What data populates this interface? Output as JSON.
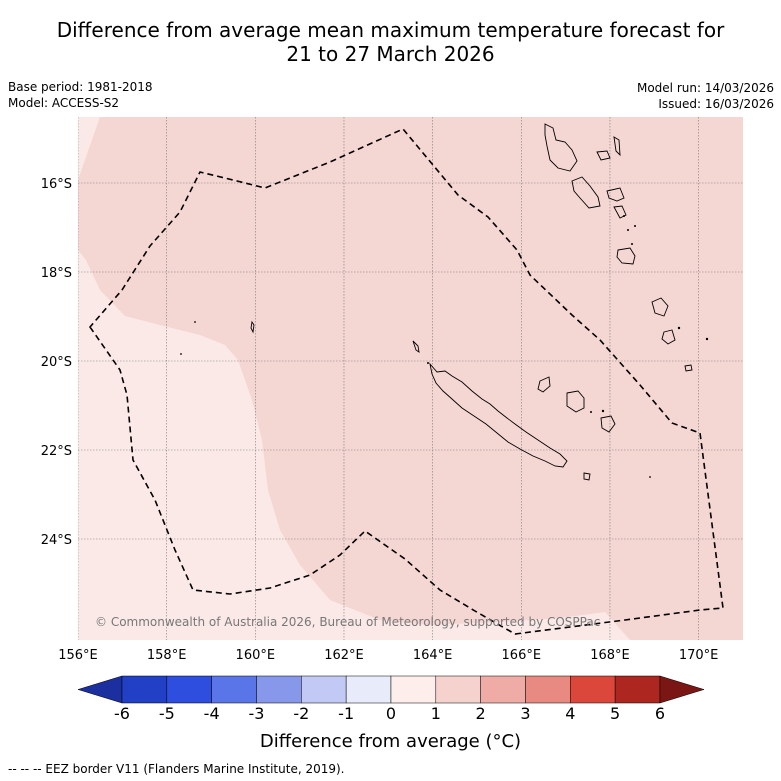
{
  "title": {
    "line1": "Difference from average mean maximum temperature forecast for",
    "line2": "21 to 27 March 2026"
  },
  "meta": {
    "base_period": "Base period: 1981-2018",
    "model": "Model: ACCESS-S2",
    "model_run": "Model run: 14/03/2026",
    "issued": "Issued: 16/03/2026"
  },
  "map": {
    "lon_labels": [
      "156°E",
      "158°E",
      "160°E",
      "162°E",
      "164°E",
      "166°E",
      "168°E",
      "170°E"
    ],
    "lat_labels": [
      "16°S",
      "18°S",
      "20°S",
      "22°S",
      "24°S"
    ],
    "copyright": "© Commonwealth of Australia 2026, Bureau of Meteorology, supported by COSPPac",
    "colors": {
      "anomaly_0_1": "#fbe9e7",
      "anomaly_1_2": "#f4d6d3",
      "coast": "#000000",
      "grid": "#7a7a7a"
    }
  },
  "colorbar": {
    "ticks": [
      "-6",
      "-5",
      "-4",
      "-3",
      "-2",
      "-1",
      "0",
      "1",
      "2",
      "3",
      "4",
      "5",
      "6"
    ],
    "colors": [
      "#1c2f9f",
      "#2140c6",
      "#2e4ee0",
      "#5a75e7",
      "#8797ea",
      "#c2c9f4",
      "#e8ebfa",
      "#fdeeeb",
      "#f6d2cf",
      "#efaca6",
      "#e88a81",
      "#dc473c",
      "#ad2620",
      "#7a1613"
    ],
    "label": "Difference from average ($^\\circ$C)",
    "label_display": "Difference from average (°C)"
  },
  "footer": {
    "eez_legend": "-- -- -- EEZ border V11 (Flanders Marine Institute, 2019)."
  }
}
